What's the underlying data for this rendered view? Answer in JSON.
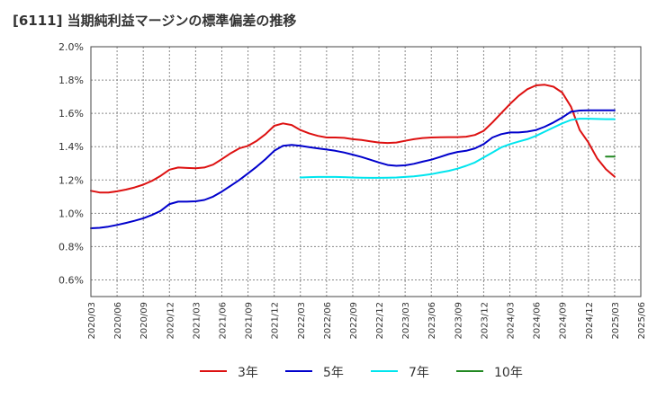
{
  "chart_data": {
    "type": "line",
    "title": "[6111]  当期純利益マージンの標準偏差の推移",
    "xlabel": "",
    "ylabel": "",
    "ylim": [
      0.5,
      2.0
    ],
    "y_ticks": [
      "0.6%",
      "0.8%",
      "1.0%",
      "1.2%",
      "1.4%",
      "1.6%",
      "1.8%",
      "2.0%"
    ],
    "y_tick_values": [
      0.6,
      0.8,
      1.0,
      1.2,
      1.4,
      1.6,
      1.8,
      2.0
    ],
    "x_tick_labels": [
      "2020/03",
      "2020/06",
      "2020/09",
      "2020/12",
      "2021/03",
      "2021/06",
      "2021/09",
      "2021/12",
      "2022/03",
      "2022/06",
      "2022/09",
      "2022/12",
      "2023/03",
      "2023/06",
      "2023/09",
      "2023/12",
      "2024/03",
      "2024/06",
      "2024/09",
      "2024/12",
      "2025/03",
      "2025/06"
    ],
    "grid": true,
    "legend_position": "bottom",
    "series": [
      {
        "name": "3年",
        "color": "#dd1111",
        "x": [
          "2020/03",
          "2020/04",
          "2020/05",
          "2020/06",
          "2020/07",
          "2020/08",
          "2020/09",
          "2020/10",
          "2020/11",
          "2020/12",
          "2021/01",
          "2021/02",
          "2021/03",
          "2021/04",
          "2021/05",
          "2021/06",
          "2021/07",
          "2021/08",
          "2021/09",
          "2021/10",
          "2021/11",
          "2021/12",
          "2022/01",
          "2022/02",
          "2022/03",
          "2022/04",
          "2022/05",
          "2022/06",
          "2022/07",
          "2022/08",
          "2022/09",
          "2022/10",
          "2022/11",
          "2022/12",
          "2023/01",
          "2023/02",
          "2023/03",
          "2023/04",
          "2023/05",
          "2023/06",
          "2023/07",
          "2023/08",
          "2023/09",
          "2023/10",
          "2023/11",
          "2023/12",
          "2024/01",
          "2024/02",
          "2024/03",
          "2024/04",
          "2024/05",
          "2024/06",
          "2024/07",
          "2024/08",
          "2024/09",
          "2024/10",
          "2024/11",
          "2024/12",
          "2025/01",
          "2025/02",
          "2025/03"
        ],
        "values": [
          1.135,
          1.125,
          1.125,
          1.132,
          1.142,
          1.155,
          1.172,
          1.195,
          1.225,
          1.262,
          1.275,
          1.272,
          1.27,
          1.275,
          1.292,
          1.325,
          1.36,
          1.39,
          1.405,
          1.435,
          1.475,
          1.525,
          1.54,
          1.53,
          1.5,
          1.48,
          1.465,
          1.455,
          1.455,
          1.453,
          1.445,
          1.44,
          1.432,
          1.425,
          1.422,
          1.425,
          1.435,
          1.445,
          1.452,
          1.455,
          1.456,
          1.457,
          1.457,
          1.46,
          1.47,
          1.495,
          1.545,
          1.6,
          1.655,
          1.705,
          1.745,
          1.768,
          1.772,
          1.76,
          1.725,
          1.64,
          1.5,
          1.425,
          1.33,
          1.265,
          1.22
        ]
      },
      {
        "name": "5年",
        "color": "#0000cc",
        "x": [
          "2020/03",
          "2020/04",
          "2020/05",
          "2020/06",
          "2020/07",
          "2020/08",
          "2020/09",
          "2020/10",
          "2020/11",
          "2020/12",
          "2021/01",
          "2021/02",
          "2021/03",
          "2021/04",
          "2021/05",
          "2021/06",
          "2021/07",
          "2021/08",
          "2021/09",
          "2021/10",
          "2021/11",
          "2021/12",
          "2022/01",
          "2022/02",
          "2022/03",
          "2022/04",
          "2022/05",
          "2022/06",
          "2022/07",
          "2022/08",
          "2022/09",
          "2022/10",
          "2022/11",
          "2022/12",
          "2023/01",
          "2023/02",
          "2023/03",
          "2023/04",
          "2023/05",
          "2023/06",
          "2023/07",
          "2023/08",
          "2023/09",
          "2023/10",
          "2023/11",
          "2023/12",
          "2024/01",
          "2024/02",
          "2024/03",
          "2024/04",
          "2024/05",
          "2024/06",
          "2024/07",
          "2024/08",
          "2024/09",
          "2024/10",
          "2024/11",
          "2024/12",
          "2025/01",
          "2025/02",
          "2025/03"
        ],
        "values": [
          0.91,
          0.913,
          0.92,
          0.93,
          0.942,
          0.955,
          0.97,
          0.99,
          1.015,
          1.055,
          1.07,
          1.07,
          1.072,
          1.08,
          1.1,
          1.13,
          1.165,
          1.2,
          1.24,
          1.28,
          1.325,
          1.375,
          1.405,
          1.41,
          1.405,
          1.397,
          1.39,
          1.383,
          1.375,
          1.365,
          1.352,
          1.338,
          1.322,
          1.305,
          1.29,
          1.285,
          1.288,
          1.297,
          1.31,
          1.322,
          1.338,
          1.355,
          1.368,
          1.375,
          1.39,
          1.415,
          1.455,
          1.475,
          1.485,
          1.485,
          1.49,
          1.5,
          1.52,
          1.545,
          1.575,
          1.61,
          1.617,
          1.618,
          1.618,
          1.618,
          1.618
        ]
      },
      {
        "name": "7年",
        "color": "#00e5ee",
        "x": [
          "2022/03",
          "2022/04",
          "2022/05",
          "2022/06",
          "2022/07",
          "2022/08",
          "2022/09",
          "2022/10",
          "2022/11",
          "2022/12",
          "2023/01",
          "2023/02",
          "2023/03",
          "2023/04",
          "2023/05",
          "2023/06",
          "2023/07",
          "2023/08",
          "2023/09",
          "2023/10",
          "2023/11",
          "2023/12",
          "2024/01",
          "2024/02",
          "2024/03",
          "2024/04",
          "2024/05",
          "2024/06",
          "2024/07",
          "2024/08",
          "2024/09",
          "2024/10",
          "2024/11",
          "2024/12",
          "2025/01",
          "2025/02",
          "2025/03"
        ],
        "values": [
          1.215,
          1.217,
          1.218,
          1.218,
          1.218,
          1.217,
          1.215,
          1.214,
          1.213,
          1.213,
          1.214,
          1.215,
          1.218,
          1.222,
          1.228,
          1.235,
          1.245,
          1.255,
          1.268,
          1.285,
          1.305,
          1.335,
          1.365,
          1.395,
          1.415,
          1.43,
          1.445,
          1.465,
          1.49,
          1.515,
          1.54,
          1.56,
          1.568,
          1.568,
          1.566,
          1.565,
          1.565
        ]
      },
      {
        "name": "10年",
        "color": "#228822",
        "x": [
          "2025/02",
          "2025/03"
        ],
        "values": [
          1.34,
          1.34
        ]
      }
    ]
  }
}
